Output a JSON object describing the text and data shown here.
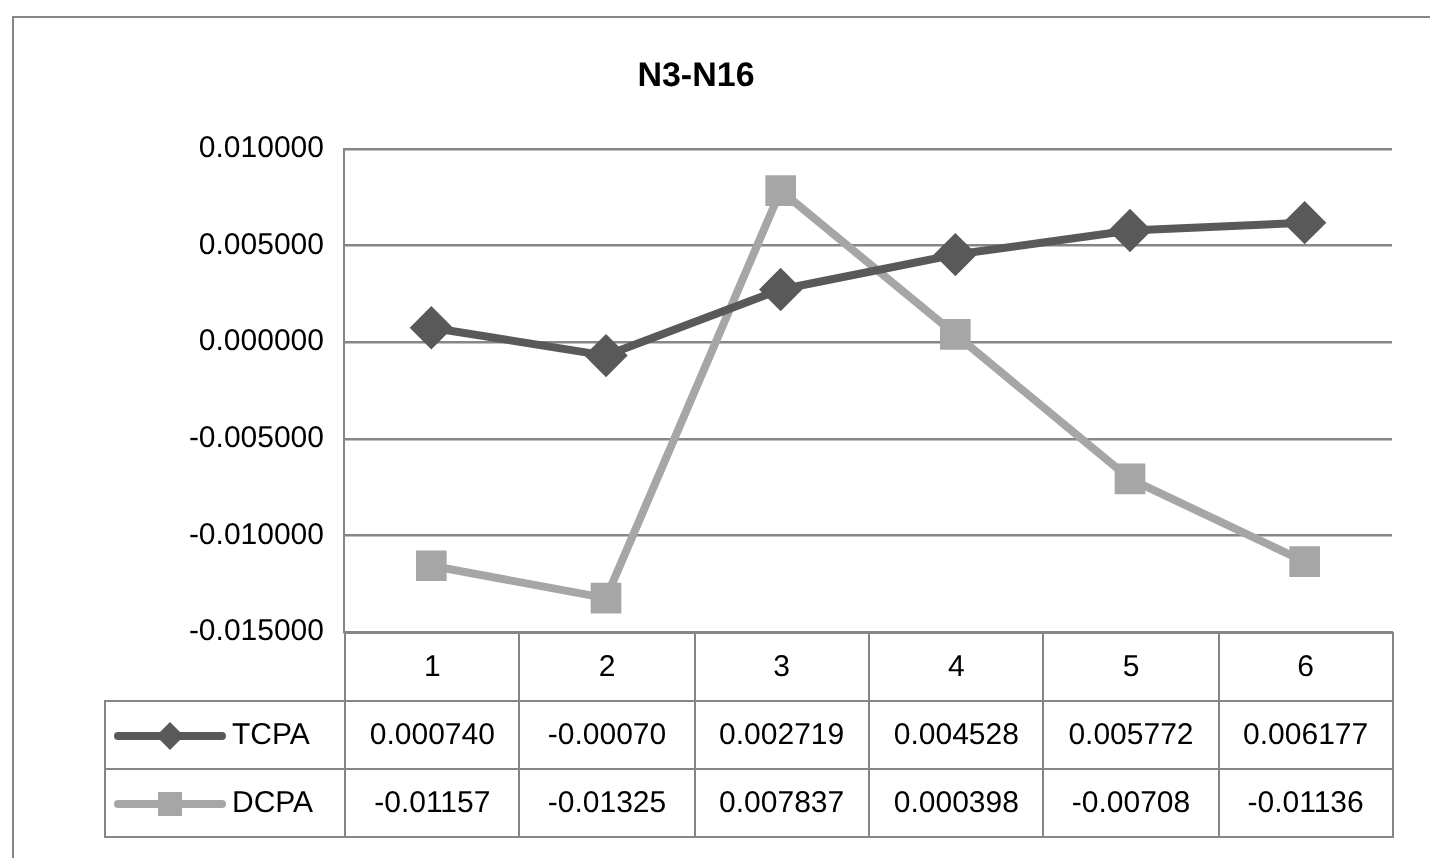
{
  "chart_data": {
    "type": "line",
    "title": "N3-N16",
    "categories": [
      "1",
      "2",
      "3",
      "4",
      "5",
      "6"
    ],
    "series": [
      {
        "name": "TCPA",
        "color": "#595959",
        "marker": "diamond",
        "values": [
          0.00074,
          -0.0007,
          0.002719,
          0.004528,
          0.005772,
          0.006177
        ],
        "value_labels": [
          "0.000740",
          "-0.00070",
          "0.002719",
          "0.004528",
          "0.005772",
          "0.006177"
        ]
      },
      {
        "name": "DCPA",
        "color": "#a6a6a6",
        "marker": "square",
        "values": [
          -0.01157,
          -0.01325,
          0.007837,
          0.000398,
          -0.00708,
          -0.01136
        ],
        "value_labels": [
          "-0.01157",
          "-0.01325",
          "0.007837",
          "0.000398",
          "-0.00708",
          "-0.01136"
        ]
      }
    ],
    "ylim": [
      -0.015,
      0.01
    ],
    "yticks": [
      {
        "value": -0.015,
        "label": "-0.015000"
      },
      {
        "value": -0.01,
        "label": "-0.010000"
      },
      {
        "value": -0.005,
        "label": "-0.005000"
      },
      {
        "value": 0,
        "label": "0.000000"
      },
      {
        "value": 0.005,
        "label": "0.005000"
      },
      {
        "value": 0.01,
        "label": "0.010000"
      }
    ],
    "grid": "y",
    "legend": "bottom"
  }
}
